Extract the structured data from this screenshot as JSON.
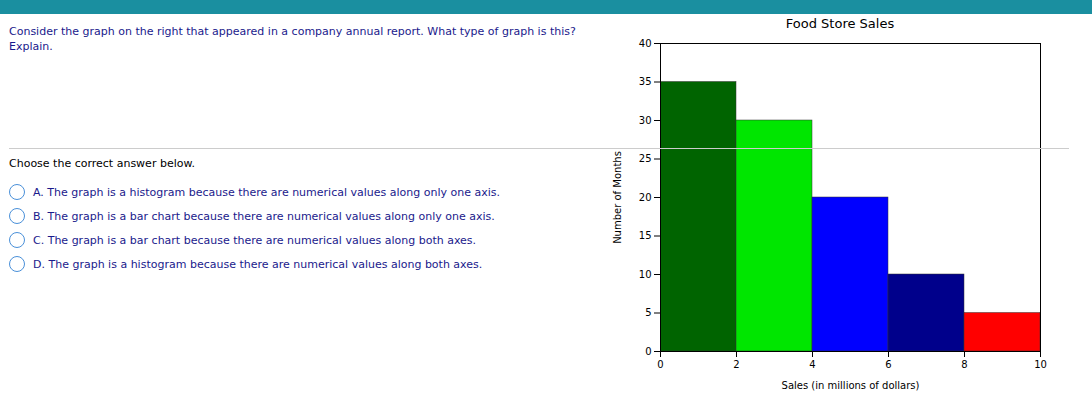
{
  "chart_data": {
    "type": "histogram",
    "title": "Food Store Sales",
    "xlabel": "Sales (in millions of dollars)",
    "ylabel": "Number of Months",
    "bins": [
      0,
      2,
      4,
      6,
      8,
      10
    ],
    "values": [
      35,
      30,
      20,
      10,
      5
    ],
    "colors": [
      "#006400",
      "#00e600",
      "#0000ff",
      "#00008b",
      "#ff0000"
    ],
    "xlim": [
      0,
      10
    ],
    "ylim": [
      0,
      40
    ],
    "xticks": [
      0,
      2,
      4,
      6,
      8,
      10
    ],
    "yticks": [
      0,
      5,
      10,
      15,
      20,
      25,
      30,
      35,
      40
    ],
    "annotations": [
      "Consider the graph on the right that appeared in a company annual report. What type of graph is this? Explain.",
      "Choose the correct answer below.",
      "A. The graph is a histogram because there are numerical values along only one axis.",
      "B. The graph is a bar chart because there are numerical values along only one axis.",
      "C. The graph is a bar chart because there are numerical values along both axes.",
      "D. The graph is a histogram because there are numerical values along both axes."
    ]
  }
}
